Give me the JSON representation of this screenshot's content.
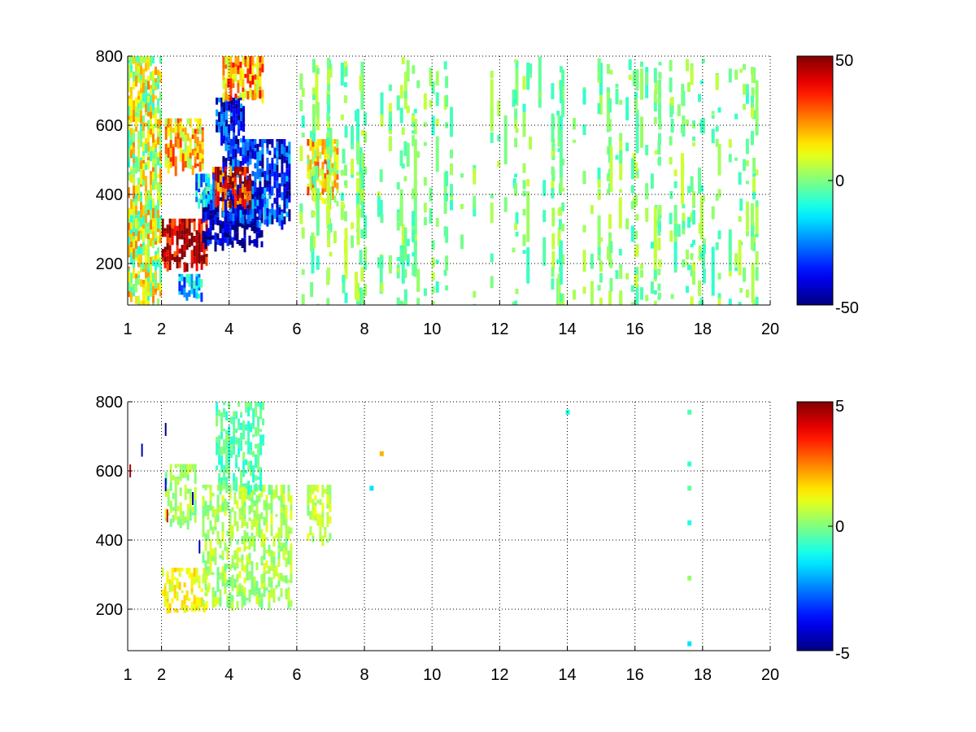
{
  "figure": {
    "background": "#ffffff",
    "colormap": "jet"
  },
  "chart_data": [
    {
      "type": "heatmap",
      "title": "",
      "xlabel": "",
      "ylabel": "",
      "xlim": [
        1,
        20
      ],
      "ylim": [
        80,
        800
      ],
      "xticks": [
        1,
        2,
        4,
        6,
        8,
        10,
        12,
        14,
        16,
        18,
        20
      ],
      "xtick_labels": [
        "1",
        "2",
        "4",
        "6",
        "8",
        "10",
        "12",
        "14",
        "16",
        "18",
        "20"
      ],
      "yticks": [
        200,
        400,
        600,
        800
      ],
      "ytick_labels": [
        "200",
        "400",
        "600",
        "800"
      ],
      "grid": true,
      "grid_style": "dotted",
      "colorbar": {
        "limits": [
          -50,
          50
        ],
        "ticks": [
          50,
          0,
          -50
        ],
        "tick_labels": [
          "50",
          "0",
          "-50"
        ],
        "placement": "right"
      },
      "features": [
        {
          "x": [
            2.0,
            3.3
          ],
          "y": [
            200,
            330
          ],
          "value": 45
        },
        {
          "x": [
            3.2,
            5.0
          ],
          "y": [
            260,
            420
          ],
          "value": -48
        },
        {
          "x": [
            3.8,
            5.8
          ],
          "y": [
            320,
            560
          ],
          "value": -35
        },
        {
          "x": [
            3.5,
            4.6
          ],
          "y": [
            380,
            480
          ],
          "value": 35
        },
        {
          "x": [
            2.1,
            3.2
          ],
          "y": [
            480,
            620
          ],
          "value": 18
        },
        {
          "x": [
            3.6,
            4.4
          ],
          "y": [
            560,
            680
          ],
          "value": -38
        },
        {
          "x": [
            3.8,
            5.0
          ],
          "y": [
            680,
            800
          ],
          "value": 22
        },
        {
          "x": [
            2.5,
            3.2
          ],
          "y": [
            110,
            170
          ],
          "value": -20
        },
        {
          "x": [
            3.0,
            3.6
          ],
          "y": [
            380,
            460
          ],
          "value": -18
        },
        {
          "x": [
            6.3,
            7.2
          ],
          "y": [
            380,
            560
          ],
          "value": 15
        },
        {
          "x": [
            1.0,
            2.0
          ],
          "y": [
            80,
            800
          ],
          "value": 8
        }
      ],
      "background_noise": {
        "x": [
          6,
          20
        ],
        "y": [
          80,
          800
        ],
        "values": [
          -8,
          8
        ]
      }
    },
    {
      "type": "heatmap",
      "title": "",
      "xlabel": "",
      "ylabel": "",
      "xlim": [
        1,
        20
      ],
      "ylim": [
        80,
        800
      ],
      "xticks": [
        1,
        2,
        4,
        6,
        8,
        10,
        12,
        14,
        16,
        18,
        20
      ],
      "xtick_labels": [
        "1",
        "2",
        "4",
        "6",
        "8",
        "10",
        "12",
        "14",
        "16",
        "18",
        "20"
      ],
      "yticks": [
        200,
        400,
        600,
        800
      ],
      "ytick_labels": [
        "200",
        "400",
        "600",
        "800"
      ],
      "grid": true,
      "grid_style": "dotted",
      "colorbar": {
        "limits": [
          -5,
          5
        ],
        "ticks": [
          5,
          0,
          -5
        ],
        "tick_labels": [
          "5",
          "0",
          "-5"
        ],
        "placement": "right"
      },
      "features": [
        {
          "x": [
            2.0,
            3.4
          ],
          "y": [
            200,
            320
          ],
          "value": 1.2
        },
        {
          "x": [
            3.2,
            5.8
          ],
          "y": [
            220,
            560
          ],
          "value": 0.4
        },
        {
          "x": [
            3.6,
            5.0
          ],
          "y": [
            550,
            800
          ],
          "value": -0.4
        },
        {
          "x": [
            2.1,
            3.0
          ],
          "y": [
            450,
            620
          ],
          "value": 0.3
        },
        {
          "x": [
            6.3,
            7.0
          ],
          "y": [
            400,
            560
          ],
          "value": 0.6
        }
      ],
      "sparse_points": [
        {
          "x": 14.0,
          "y": 770,
          "value": -1.0
        },
        {
          "x": 17.6,
          "y": 770,
          "value": -0.5
        },
        {
          "x": 17.6,
          "y": 620,
          "value": -0.8
        },
        {
          "x": 17.6,
          "y": 550,
          "value": -0.3
        },
        {
          "x": 17.6,
          "y": 450,
          "value": -1.0
        },
        {
          "x": 17.6,
          "y": 290,
          "value": 0.2
        },
        {
          "x": 17.6,
          "y": 100,
          "value": -1.5
        },
        {
          "x": 8.2,
          "y": 550,
          "value": -1.5
        },
        {
          "x": 8.5,
          "y": 650,
          "value": 2.0
        }
      ],
      "outliers": [
        {
          "x": 2.1,
          "y": 720,
          "value": -5
        },
        {
          "x": 2.1,
          "y": 560,
          "value": -4
        },
        {
          "x": 1.4,
          "y": 660,
          "value": -4.5
        },
        {
          "x": 1.05,
          "y": 600,
          "value": 4.5
        },
        {
          "x": 2.9,
          "y": 520,
          "value": -4.5
        },
        {
          "x": 3.1,
          "y": 380,
          "value": -4.5
        },
        {
          "x": 2.15,
          "y": 470,
          "value": 4
        }
      ]
    }
  ]
}
